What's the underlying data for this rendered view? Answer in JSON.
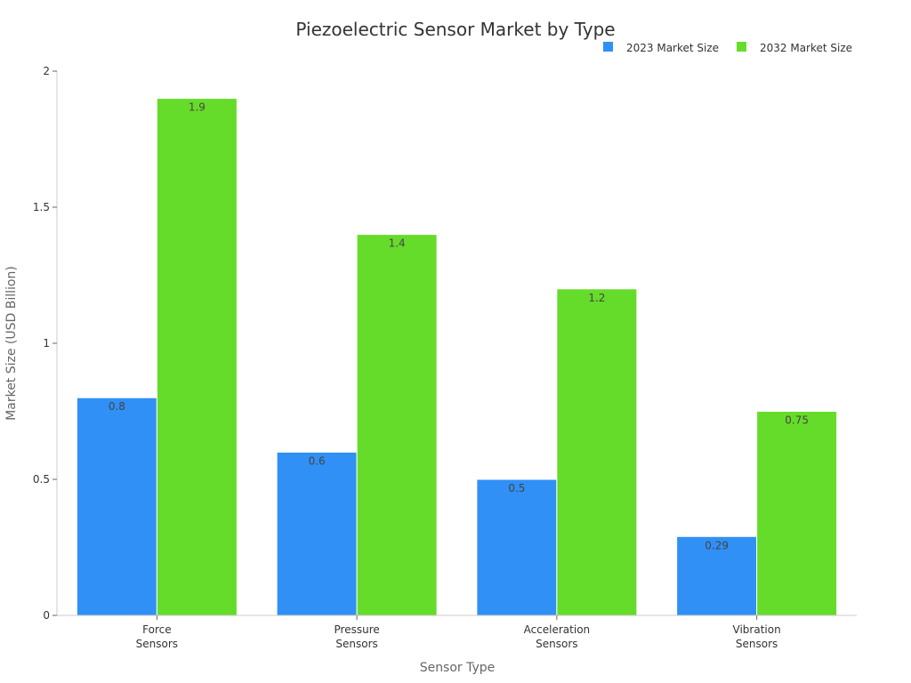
{
  "chart_data": {
    "type": "bar",
    "title": "Piezoelectric Sensor Market by Type",
    "xlabel": "Sensor Type",
    "ylabel": "Market Size (USD Billion)",
    "categories": [
      "Force Sensors",
      "Pressure Sensors",
      "Acceleration Sensors",
      "Vibration Sensors"
    ],
    "category_lines": [
      [
        "Force",
        "Sensors"
      ],
      [
        "Pressure",
        "Sensors"
      ],
      [
        "Acceleration",
        "Sensors"
      ],
      [
        "Vibration",
        "Sensors"
      ]
    ],
    "series": [
      {
        "name": "2023 Market Size",
        "values": [
          0.8,
          0.6,
          0.5,
          0.29
        ],
        "labels": [
          "0.8",
          "0.6",
          "0.5",
          "0.29"
        ],
        "color": "#3090f5"
      },
      {
        "name": "2032 Market Size",
        "values": [
          1.9,
          1.4,
          1.2,
          0.75
        ],
        "labels": [
          "1.9",
          "1.4",
          "1.2",
          "0.75"
        ],
        "color": "#66dc2a"
      }
    ],
    "ylim": [
      0,
      2
    ],
    "yticks": [
      0,
      0.5,
      1,
      1.5,
      2
    ],
    "ytick_labels": [
      "0",
      "0.5",
      "1",
      "1.5",
      "2"
    ],
    "grid": false,
    "legend_position": "top-right"
  }
}
